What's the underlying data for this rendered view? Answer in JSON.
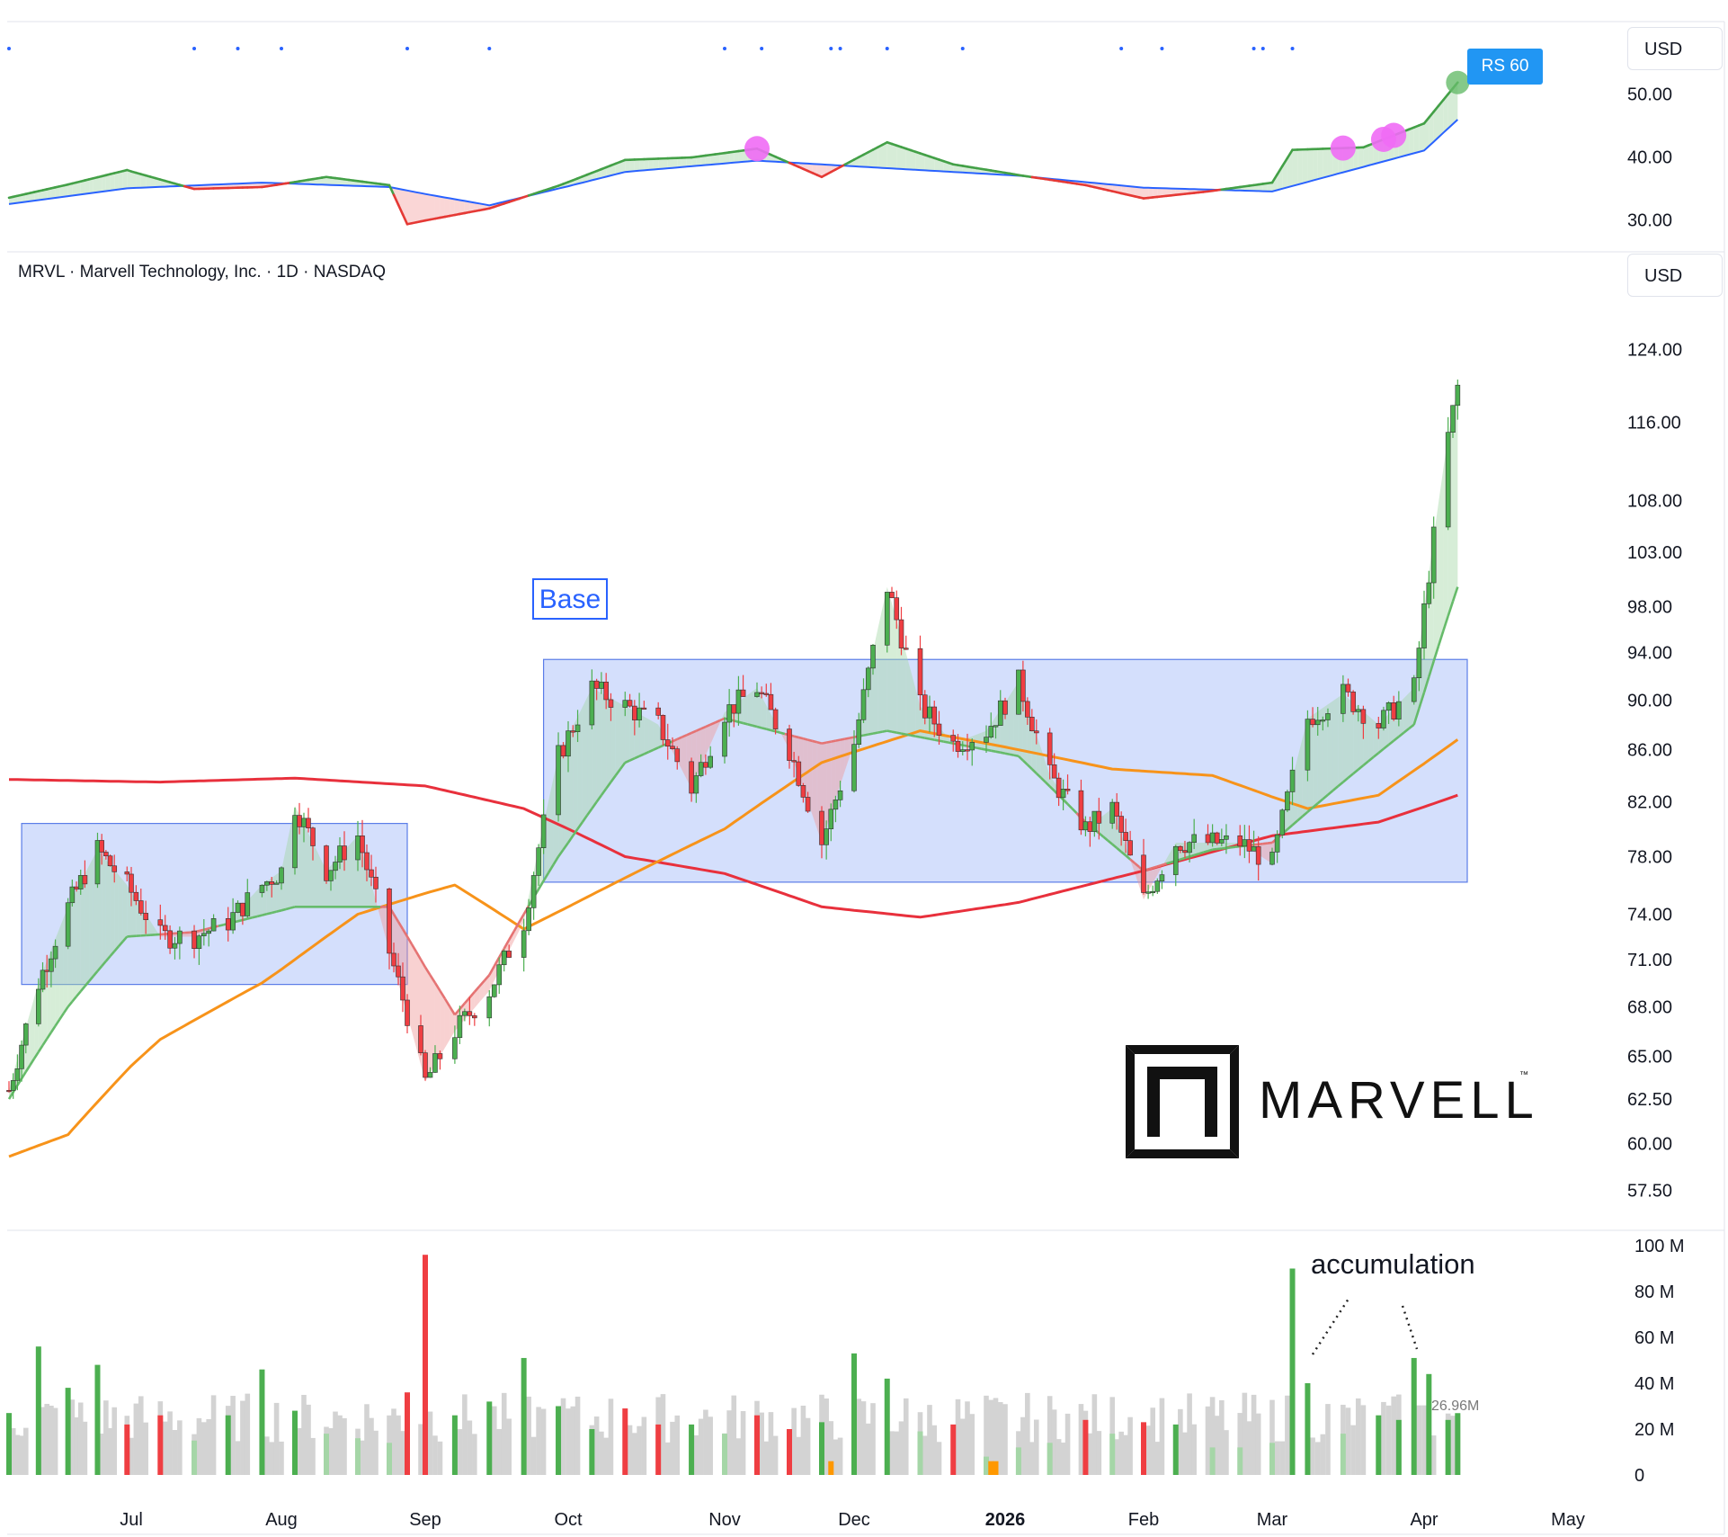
{
  "header": {
    "symbol_title": "MRVL · Marvell Technology, Inc. · 1D · NASDAQ",
    "currency_top": "USD",
    "currency_main": "USD",
    "rs_badge": "RS 60"
  },
  "annotations": {
    "base_label": "Base",
    "accumulation_label": "accumulation",
    "volume_last_label": "26.96M"
  },
  "logo": {
    "text": "MARVELL",
    "tm": "™"
  },
  "colors": {
    "up": "#4caf50",
    "down": "#ef3e42",
    "volume_neutral": "#d3d3d3",
    "volume_up_light": "#a5d6a7",
    "volume_orange": "#ff9800",
    "ema_fast": "#66bb6a",
    "ma_mid": "#f7931a",
    "ma_long": "#e8303c",
    "rs_line_up": "#43a047",
    "rs_line_down": "#e53935",
    "rs_ma": "#2962ff",
    "base_box_fill": "#c9d7fb",
    "base_box_stroke": "#5b7de8",
    "highlight_dot": "#f06bf5"
  },
  "chart_data": [
    {
      "type": "line",
      "name": "relative_strength",
      "y_ticks": [
        50,
        40,
        30
      ],
      "y_tick_labels": [
        "50.00",
        "40.00",
        "30.00"
      ],
      "ylim": [
        25.2,
        60.9
      ],
      "series": [
        {
          "x": [
            "Jun 2",
            "Jun 16",
            "Jun 30",
            "Jul 14",
            "Jul 28",
            "Aug 11",
            "Aug 25",
            "Aug 29",
            "Sep 15",
            "Sep 29",
            "Oct 13",
            "Oct 27",
            "Nov 10",
            "Nov 24",
            "Dec 8",
            "Dec 22",
            "Jan 5",
            "Jan 20",
            "Feb 2",
            "Feb 16",
            "Mar 2",
            "Mar 6",
            "Mar 20",
            "Apr 1",
            "Apr 8"
          ],
          "values": [
            33.5,
            35.6,
            37.9,
            34.9,
            35.2,
            36.8,
            35.5,
            29.3,
            31.8,
            35.4,
            39.5,
            39.9,
            41.3,
            36.8,
            42.3,
            38.8,
            37.1,
            35.5,
            33.4,
            34.5,
            35.9,
            41.1,
            41.5,
            45.3,
            51.8
          ]
        },
        {
          "x": [
            "Jun 2",
            "Jun 30",
            "Jul 28",
            "Aug 25",
            "Sep 15",
            "Oct 13",
            "Nov 10",
            "Dec 8",
            "Jan 5",
            "Feb 2",
            "Mar 2",
            "Mar 20",
            "Apr 1",
            "Apr 8"
          ],
          "values": [
            32.5,
            35.0,
            35.9,
            35.2,
            32.3,
            37.6,
            39.4,
            38.2,
            37.0,
            35.1,
            34.5,
            38.4,
            41.0,
            45.9
          ]
        }
      ],
      "markers": [
        "Nov 10",
        "Mar 16",
        "Mar 24",
        "Mar 26",
        "Apr 8"
      ]
    },
    {
      "type": "line",
      "name": "price",
      "title": "MRVL · Marvell Technology, Inc. · 1D · NASDAQ",
      "x_tick_labels": [
        "Jul",
        "Aug",
        "Sep",
        "Oct",
        "Nov",
        "Dec",
        "2026",
        "Feb",
        "Mar",
        "Apr",
        "May"
      ],
      "y_ticks": [
        124,
        116,
        108,
        103,
        98,
        94,
        90,
        86,
        82,
        78,
        74,
        71,
        68,
        65,
        62.5,
        60,
        57.5
      ],
      "y_tick_labels": [
        "124.00",
        "116.00",
        "108.00",
        "103.00",
        "98.00",
        "94.00",
        "90.00",
        "86.00",
        "82.00",
        "78.00",
        "74.00",
        "71.00",
        "68.00",
        "65.00",
        "62.50",
        "60.00",
        "57.50"
      ],
      "y_scale": "log",
      "ylim": [
        55.8,
        130.1
      ],
      "bases": [
        {
          "label": "",
          "x_start": "Jun 5",
          "x_end": "Aug 29",
          "y_low": 69.4,
          "y_high": 80.4
        },
        {
          "label": "Base",
          "x_start": "Sep 26",
          "x_end": "Apr 10",
          "y_low": 76.2,
          "y_high": 93.4
        }
      ],
      "series": [
        {
          "x": [
            "Jun 2",
            "Jun 9",
            "Jun 16",
            "Jun 23",
            "Jun 30",
            "Jul 7",
            "Jul 14",
            "Jul 21",
            "Jul 28",
            "Aug 1",
            "Aug 4",
            "Aug 11",
            "Aug 18",
            "Aug 25",
            "Sep 2",
            "Sep 8",
            "Sep 15",
            "Sep 22",
            "Sep 29",
            "Oct 6",
            "Oct 13",
            "Oct 20",
            "Oct 27",
            "Nov 3",
            "Nov 10",
            "Nov 17",
            "Nov 24",
            "Dec 1",
            "Dec 8",
            "Dec 15",
            "Dec 22",
            "Dec 29",
            "Jan 5",
            "Jan 12",
            "Jan 20",
            "Jan 26",
            "Feb 2",
            "Feb 9",
            "Feb 17",
            "Feb 23",
            "Mar 2",
            "Mar 9",
            "Mar 16",
            "Mar 23",
            "Mar 30",
            "Apr 6",
            "Apr 8"
          ],
          "values": [
            63.0,
            69.5,
            74.5,
            78.5,
            76.0,
            72.5,
            72.5,
            73.5,
            76.0,
            77.0,
            81.7,
            77.0,
            79.5,
            71.5,
            63.5,
            66.5,
            69.0,
            73.5,
            85.5,
            91.0,
            89.5,
            88.0,
            83.0,
            89.0,
            91.0,
            86.0,
            79.0,
            86.5,
            99.8,
            89.5,
            86.5,
            87.5,
            91.5,
            84.0,
            80.0,
            81.5,
            75.0,
            79.0,
            79.0,
            79.0,
            77.5,
            88.5,
            90.5,
            88.0,
            91.0,
            114.5,
            119.8
          ]
        },
        {
          "x": [
            "Jun 2",
            "Jun 16",
            "Jun 30",
            "Jul 14",
            "Aug 4",
            "Aug 25",
            "Sep 8",
            "Sep 15",
            "Sep 29",
            "Oct 13",
            "Nov 3",
            "Nov 24",
            "Dec 8",
            "Dec 22",
            "Jan 5",
            "Jan 20",
            "Feb 2",
            "Feb 17",
            "Mar 2",
            "Mar 16",
            "Mar 30",
            "Apr 8"
          ],
          "values": [
            62.5,
            68.0,
            72.5,
            72.8,
            74.5,
            74.5,
            67.5,
            70.0,
            78.0,
            85.0,
            88.5,
            86.5,
            87.5,
            86.5,
            85.5,
            80.5,
            77.0,
            78.5,
            79.0,
            83.5,
            88.0,
            99.8
          ]
        },
        {
          "x": [
            "Jun 2",
            "Jun 16",
            "Jul 7",
            "Jul 28",
            "Aug 18",
            "Sep 8",
            "Sep 22",
            "Oct 13",
            "Nov 3",
            "Nov 24",
            "Dec 15",
            "Jan 5",
            "Jan 26",
            "Feb 17",
            "Mar 9",
            "Mar 23",
            "Apr 8"
          ],
          "values": [
            59.3,
            60.5,
            66.0,
            69.5,
            74.0,
            76.0,
            73.0,
            76.5,
            80.0,
            85.0,
            87.5,
            86.0,
            84.5,
            84.0,
            81.5,
            82.5,
            86.8
          ]
        },
        {
          "x": [
            "Jun 2",
            "Jul 7",
            "Aug 4",
            "Sep 2",
            "Sep 22",
            "Oct 13",
            "Nov 3",
            "Nov 24",
            "Dec 15",
            "Jan 5",
            "Feb 2",
            "Mar 2",
            "Mar 23",
            "Apr 8"
          ],
          "values": [
            83.7,
            83.5,
            83.8,
            83.2,
            81.5,
            78.0,
            76.8,
            74.5,
            73.8,
            74.8,
            77.0,
            79.5,
            80.5,
            82.5
          ]
        }
      ]
    },
    {
      "type": "bar",
      "name": "volume",
      "y_ticks": [
        100,
        80,
        60,
        40,
        20,
        0
      ],
      "y_tick_labels": [
        "100 M",
        "80 M",
        "60 M",
        "40 M",
        "20 M",
        "0"
      ],
      "ylim": [
        0,
        100
      ],
      "unit": "M",
      "categories": [
        "Jun 2",
        "Jun 9",
        "Jun 16",
        "Jun 23",
        "Jun 30",
        "Jul 7",
        "Jul 14",
        "Jul 21",
        "Jul 28",
        "Aug 4",
        "Aug 11",
        "Aug 18",
        "Aug 25",
        "Aug 29",
        "Sep 2",
        "Sep 8",
        "Sep 15",
        "Sep 22",
        "Sep 29",
        "Oct 6",
        "Oct 13",
        "Oct 20",
        "Oct 27",
        "Nov 3",
        "Nov 10",
        "Nov 17",
        "Nov 24",
        "Dec 1",
        "Dec 8",
        "Dec 15",
        "Dec 22",
        "Dec 29",
        "Jan 5",
        "Jan 12",
        "Jan 20",
        "Jan 26",
        "Feb 2",
        "Feb 9",
        "Feb 17",
        "Feb 23",
        "Mar 2",
        "Mar 6",
        "Mar 9",
        "Mar 16",
        "Mar 23",
        "Mar 27",
        "Mar 30",
        "Apr 2",
        "Apr 6",
        "Apr 8"
      ],
      "values": [
        27,
        56,
        38,
        48,
        22,
        26,
        15,
        26,
        46,
        28,
        18,
        16,
        14,
        36,
        96,
        26,
        32,
        51,
        30,
        20,
        29,
        22,
        22,
        18,
        26,
        20,
        23,
        53,
        42,
        19,
        22,
        8,
        12,
        14,
        24,
        18,
        23,
        22,
        12,
        12,
        14,
        90,
        40,
        18,
        26,
        24,
        51,
        44,
        24,
        26.96
      ]
    }
  ]
}
